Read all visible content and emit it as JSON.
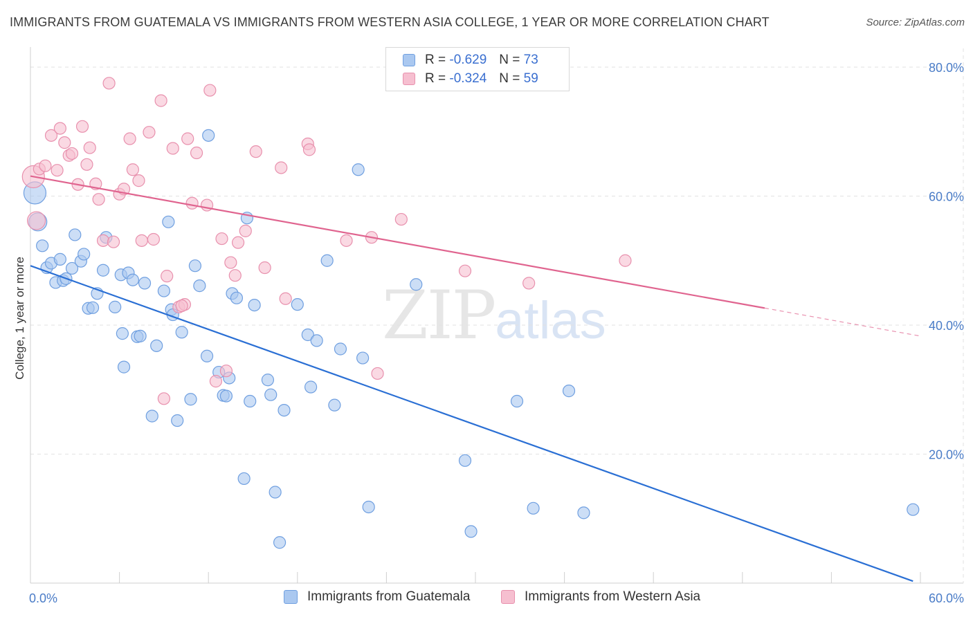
{
  "title": "IMMIGRANTS FROM GUATEMALA VS IMMIGRANTS FROM WESTERN ASIA COLLEGE, 1 YEAR OR MORE CORRELATION CHART",
  "source": "Source: ZipAtlas.com",
  "watermark": {
    "zip": "ZIP",
    "atlas": "atlas"
  },
  "legend": {
    "rows": [
      {
        "r_label": "R = ",
        "r_value": "-0.629",
        "n_label": "N = ",
        "n_value": "73"
      },
      {
        "r_label": "R = ",
        "r_value": "-0.324",
        "n_label": "N = ",
        "n_value": "59"
      }
    ]
  },
  "bottom_legend": {
    "guatemala": "Immigrants from Guatemala",
    "western_asia": "Immigrants from Western Asia"
  },
  "colors": {
    "blue_fill": "#aac8f0",
    "blue_stroke": "#6f9fe0",
    "blue_line": "#2a6fd4",
    "pink_fill": "#f6bfd0",
    "pink_stroke": "#e890ad",
    "pink_line": "#e0648f",
    "tick_text": "#4a7cc7",
    "grid": "#e2e2e2"
  },
  "chart_data": {
    "type": "scatter",
    "xlabel": "",
    "ylabel": "College, 1 year or more",
    "xlim": [
      0,
      60
    ],
    "ylim": [
      0,
      85
    ],
    "x_tick_labels": [
      {
        "value": 0,
        "label": "0.0%"
      },
      {
        "value": 60,
        "label": "60.0%"
      }
    ],
    "y_tick_labels": [
      {
        "value": 20,
        "label": "20.0%"
      },
      {
        "value": 40,
        "label": "40.0%"
      },
      {
        "value": 60,
        "label": "60.0%"
      },
      {
        "value": 80,
        "label": "80.0%"
      }
    ],
    "grid": true,
    "legend_position": "top-center",
    "series": [
      {
        "name": "Immigrants from Guatemala",
        "color": "#aac8f0",
        "trend": {
          "x": [
            0,
            59.5
          ],
          "y": [
            49.2,
            0.3
          ],
          "solid_until": 59.5
        },
        "points": [
          [
            0.3,
            60.5
          ],
          [
            0.5,
            56.0
          ],
          [
            0.8,
            52.3
          ],
          [
            1.1,
            48.9
          ],
          [
            1.4,
            49.6
          ],
          [
            1.7,
            46.6
          ],
          [
            2.0,
            50.2
          ],
          [
            2.2,
            46.9
          ],
          [
            2.4,
            47.2
          ],
          [
            2.8,
            48.8
          ],
          [
            3.0,
            54.0
          ],
          [
            3.4,
            49.9
          ],
          [
            3.6,
            51.0
          ],
          [
            3.9,
            42.6
          ],
          [
            4.2,
            42.7
          ],
          [
            4.5,
            44.9
          ],
          [
            4.9,
            48.5
          ],
          [
            5.1,
            53.6
          ],
          [
            5.7,
            42.8
          ],
          [
            6.1,
            47.8
          ],
          [
            6.2,
            38.7
          ],
          [
            6.3,
            33.5
          ],
          [
            6.6,
            48.1
          ],
          [
            6.9,
            47.0
          ],
          [
            7.2,
            38.2
          ],
          [
            7.4,
            38.3
          ],
          [
            7.7,
            46.5
          ],
          [
            8.2,
            25.9
          ],
          [
            8.5,
            36.8
          ],
          [
            9.0,
            45.3
          ],
          [
            9.3,
            56.0
          ],
          [
            9.5,
            42.4
          ],
          [
            9.6,
            41.6
          ],
          [
            9.9,
            25.2
          ],
          [
            10.2,
            38.9
          ],
          [
            10.8,
            28.5
          ],
          [
            11.1,
            49.2
          ],
          [
            11.4,
            46.1
          ],
          [
            11.9,
            35.2
          ],
          [
            12.0,
            69.4
          ],
          [
            12.7,
            32.7
          ],
          [
            13.0,
            29.1
          ],
          [
            13.2,
            29.0
          ],
          [
            13.4,
            31.8
          ],
          [
            13.6,
            44.9
          ],
          [
            13.9,
            44.2
          ],
          [
            14.4,
            16.2
          ],
          [
            14.6,
            56.6
          ],
          [
            14.8,
            28.2
          ],
          [
            15.1,
            43.1
          ],
          [
            16.0,
            31.5
          ],
          [
            16.2,
            29.2
          ],
          [
            16.5,
            14.1
          ],
          [
            17.1,
            26.8
          ],
          [
            18.0,
            43.2
          ],
          [
            18.7,
            38.5
          ],
          [
            18.9,
            30.4
          ],
          [
            19.3,
            37.6
          ],
          [
            20.0,
            50.0
          ],
          [
            20.5,
            27.6
          ],
          [
            20.9,
            36.3
          ],
          [
            22.1,
            64.1
          ],
          [
            22.4,
            34.9
          ],
          [
            22.8,
            11.8
          ],
          [
            26.0,
            46.3
          ],
          [
            29.3,
            19.0
          ],
          [
            29.7,
            8.0
          ],
          [
            32.8,
            28.2
          ],
          [
            33.9,
            11.6
          ],
          [
            36.3,
            29.8
          ],
          [
            37.3,
            10.9
          ],
          [
            59.5,
            11.4
          ],
          [
            16.8,
            6.3
          ]
        ]
      },
      {
        "name": "Immigrants from Western Asia",
        "color": "#f6bfd0",
        "trend": {
          "x": [
            0,
            60
          ],
          "y": [
            63.1,
            38.3
          ],
          "solid_until": 49.5
        },
        "points": [
          [
            0.2,
            63.0
          ],
          [
            0.4,
            56.2
          ],
          [
            0.6,
            64.2
          ],
          [
            1.0,
            64.7
          ],
          [
            1.4,
            69.4
          ],
          [
            1.8,
            64.0
          ],
          [
            2.0,
            70.5
          ],
          [
            2.3,
            68.3
          ],
          [
            2.6,
            66.3
          ],
          [
            2.8,
            66.6
          ],
          [
            3.2,
            61.8
          ],
          [
            3.5,
            70.8
          ],
          [
            3.8,
            64.9
          ],
          [
            4.0,
            67.5
          ],
          [
            4.4,
            61.9
          ],
          [
            4.6,
            59.5
          ],
          [
            4.9,
            53.1
          ],
          [
            5.3,
            77.5
          ],
          [
            5.6,
            52.9
          ],
          [
            6.0,
            60.3
          ],
          [
            6.3,
            61.1
          ],
          [
            6.7,
            68.9
          ],
          [
            6.9,
            64.1
          ],
          [
            7.3,
            62.4
          ],
          [
            7.5,
            53.1
          ],
          [
            8.0,
            69.9
          ],
          [
            8.3,
            53.3
          ],
          [
            8.8,
            74.8
          ],
          [
            9.0,
            28.6
          ],
          [
            9.2,
            47.6
          ],
          [
            9.6,
            67.4
          ],
          [
            10.0,
            42.8
          ],
          [
            10.4,
            43.2
          ],
          [
            10.6,
            68.9
          ],
          [
            10.9,
            58.9
          ],
          [
            11.2,
            66.7
          ],
          [
            11.9,
            58.6
          ],
          [
            12.1,
            76.4
          ],
          [
            12.5,
            31.3
          ],
          [
            12.9,
            53.4
          ],
          [
            13.2,
            32.9
          ],
          [
            13.5,
            49.7
          ],
          [
            13.8,
            47.7
          ],
          [
            14.0,
            52.8
          ],
          [
            14.5,
            54.6
          ],
          [
            15.2,
            66.9
          ],
          [
            15.8,
            48.9
          ],
          [
            16.9,
            64.4
          ],
          [
            17.2,
            44.1
          ],
          [
            18.7,
            68.1
          ],
          [
            18.8,
            67.2
          ],
          [
            21.3,
            53.1
          ],
          [
            23.0,
            53.6
          ],
          [
            23.4,
            32.5
          ],
          [
            25.0,
            56.4
          ],
          [
            29.3,
            48.4
          ],
          [
            33.6,
            46.5
          ],
          [
            40.1,
            50.0
          ],
          [
            10.2,
            43.0
          ]
        ]
      }
    ]
  }
}
